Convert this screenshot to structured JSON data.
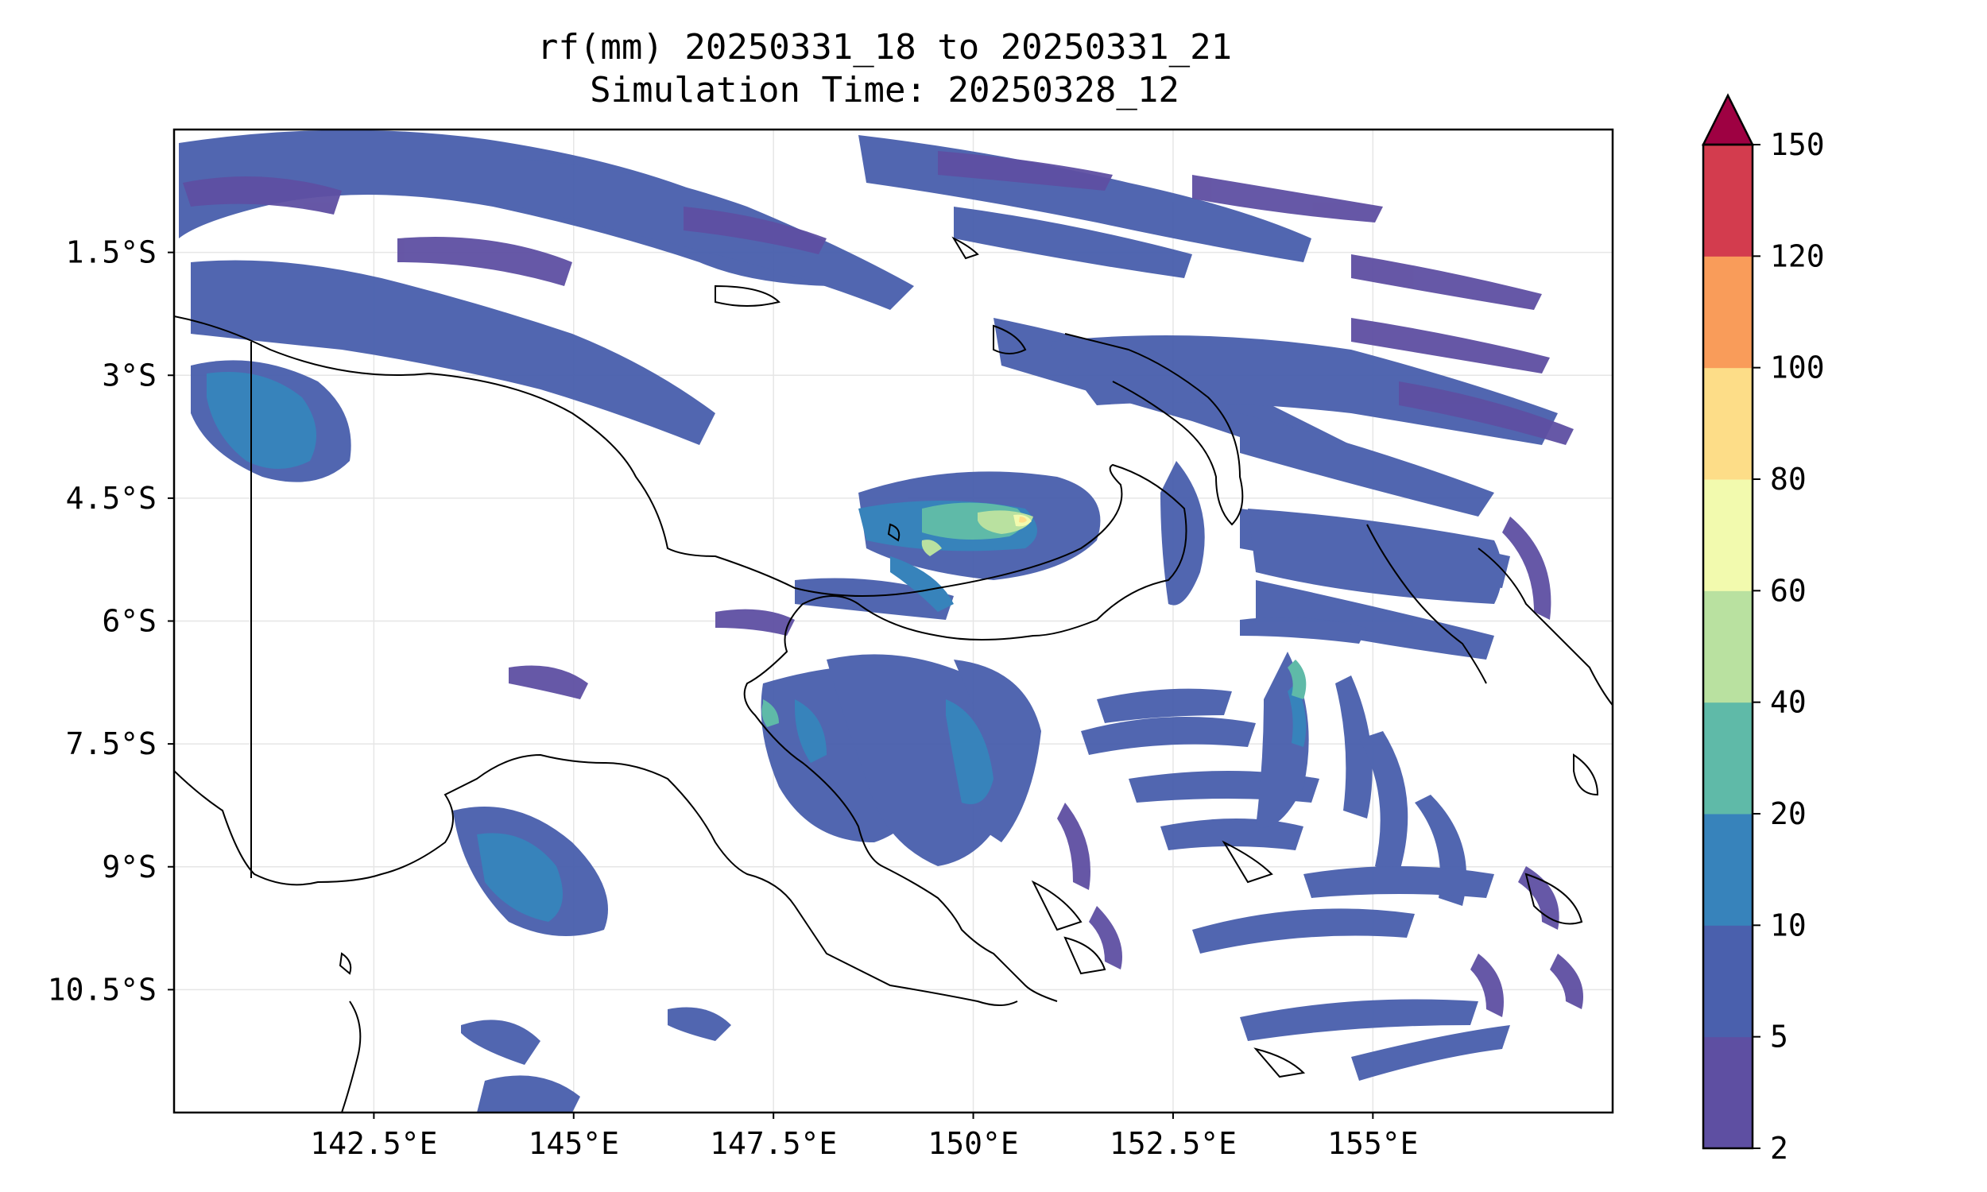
{
  "title": {
    "line1": "rf(mm) 20250331_18 to 20250331_21",
    "line2": "Simulation Time: 20250328_12"
  },
  "map": {
    "lon_range": [
      140.0,
      158.0
    ],
    "lat_range": [
      -12.0,
      0.0
    ],
    "gridlines": true,
    "x_ticks": [
      {
        "value": 142.5,
        "label": "142.5°E"
      },
      {
        "value": 145.0,
        "label": "145°E"
      },
      {
        "value": 147.5,
        "label": "147.5°E"
      },
      {
        "value": 150.0,
        "label": "150°E"
      },
      {
        "value": 152.5,
        "label": "152.5°E"
      },
      {
        "value": 155.0,
        "label": "155°E"
      }
    ],
    "y_ticks": [
      {
        "value": -1.5,
        "label": "1.5°S"
      },
      {
        "value": -3.0,
        "label": "3°S"
      },
      {
        "value": -4.5,
        "label": "4.5°S"
      },
      {
        "value": -6.0,
        "label": "6°S"
      },
      {
        "value": -7.5,
        "label": "7.5°S"
      },
      {
        "value": -9.0,
        "label": "9°S"
      },
      {
        "value": -10.5,
        "label": "10.5°S"
      }
    ]
  },
  "colorbar": {
    "levels": [
      2,
      5,
      10,
      20,
      40,
      60,
      80,
      100,
      120,
      150
    ],
    "colors": [
      "#5e4fa2",
      "#4a60ad",
      "#3783bb",
      "#5fbaa8",
      "#b9e1a0",
      "#f2faae",
      "#fddd88",
      "#f99c5a",
      "#d33c4e"
    ],
    "extend_color": "#9e0142",
    "extend": "max"
  }
}
